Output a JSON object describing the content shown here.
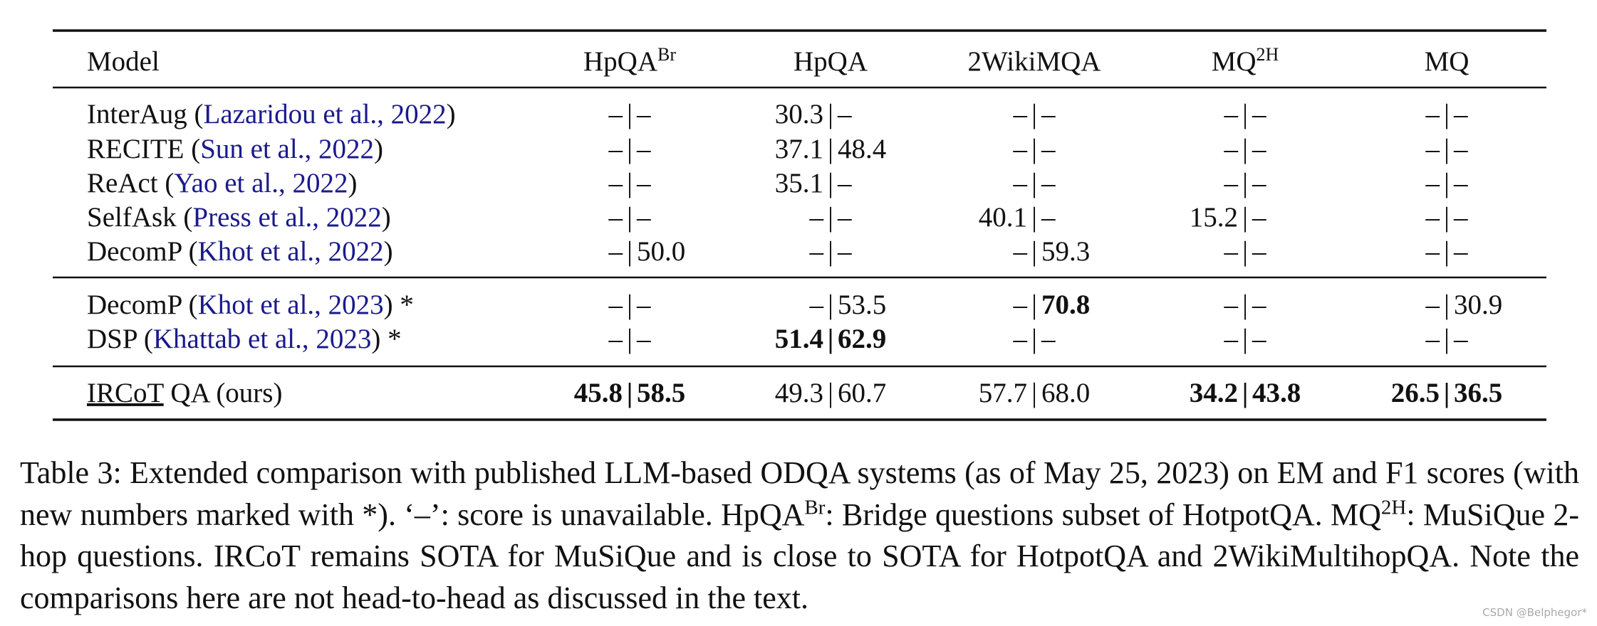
{
  "table": {
    "separator": "|",
    "header": [
      {
        "text": "Model"
      },
      {
        "text": "HpQA",
        "sup": "Br"
      },
      {
        "text": "HpQA"
      },
      {
        "text": "2WikiMQA"
      },
      {
        "text": "MQ",
        "sup": "2H"
      },
      {
        "text": "MQ"
      }
    ],
    "groups": [
      {
        "rows": [
          {
            "model_pre": "InterAug (",
            "model_cite": "Lazaridou et al., 2022",
            "model_post": ")",
            "cells": [
              {
                "em": "–",
                "f1": "–",
                "bold": [
                  false,
                  false
                ]
              },
              {
                "em": "30.3",
                "f1": "–",
                "bold": [
                  false,
                  false
                ]
              },
              {
                "em": "–",
                "f1": "–",
                "bold": [
                  false,
                  false
                ]
              },
              {
                "em": "–",
                "f1": "–",
                "bold": [
                  false,
                  false
                ]
              },
              {
                "em": "–",
                "f1": "–",
                "bold": [
                  false,
                  false
                ]
              }
            ]
          },
          {
            "model_pre": "RECITE (",
            "model_cite": "Sun et al., 2022",
            "model_post": ")",
            "cells": [
              {
                "em": "–",
                "f1": "–",
                "bold": [
                  false,
                  false
                ]
              },
              {
                "em": "37.1",
                "f1": "48.4",
                "bold": [
                  false,
                  false
                ]
              },
              {
                "em": "–",
                "f1": "–",
                "bold": [
                  false,
                  false
                ]
              },
              {
                "em": "–",
                "f1": "–",
                "bold": [
                  false,
                  false
                ]
              },
              {
                "em": "–",
                "f1": "–",
                "bold": [
                  false,
                  false
                ]
              }
            ]
          },
          {
            "model_pre": "ReAct (",
            "model_cite": "Yao et al., 2022",
            "model_post": ")",
            "cells": [
              {
                "em": "–",
                "f1": "–",
                "bold": [
                  false,
                  false
                ]
              },
              {
                "em": "35.1",
                "f1": "–",
                "bold": [
                  false,
                  false
                ]
              },
              {
                "em": "–",
                "f1": "–",
                "bold": [
                  false,
                  false
                ]
              },
              {
                "em": "–",
                "f1": "–",
                "bold": [
                  false,
                  false
                ]
              },
              {
                "em": "–",
                "f1": "–",
                "bold": [
                  false,
                  false
                ]
              }
            ]
          },
          {
            "model_pre": "SelfAsk (",
            "model_cite": "Press et al., 2022",
            "model_post": ")",
            "cells": [
              {
                "em": "–",
                "f1": "–",
                "bold": [
                  false,
                  false
                ]
              },
              {
                "em": "–",
                "f1": "–",
                "bold": [
                  false,
                  false
                ]
              },
              {
                "em": "40.1",
                "f1": "–",
                "bold": [
                  false,
                  false
                ]
              },
              {
                "em": "15.2",
                "f1": "–",
                "bold": [
                  false,
                  false
                ]
              },
              {
                "em": "–",
                "f1": "–",
                "bold": [
                  false,
                  false
                ]
              }
            ]
          },
          {
            "model_pre": "DecomP (",
            "model_cite": "Khot et al., 2022",
            "model_post": ")",
            "cells": [
              {
                "em": "–",
                "f1": "50.0",
                "bold": [
                  false,
                  false
                ]
              },
              {
                "em": "–",
                "f1": "–",
                "bold": [
                  false,
                  false
                ]
              },
              {
                "em": "–",
                "f1": "59.3",
                "bold": [
                  false,
                  false
                ]
              },
              {
                "em": "–",
                "f1": "–",
                "bold": [
                  false,
                  false
                ]
              },
              {
                "em": "–",
                "f1": "–",
                "bold": [
                  false,
                  false
                ]
              }
            ]
          }
        ]
      },
      {
        "rows": [
          {
            "model_pre": "DecomP (",
            "model_cite": "Khot et al., 2023",
            "model_post": ") *",
            "cells": [
              {
                "em": "–",
                "f1": "–",
                "bold": [
                  false,
                  false
                ]
              },
              {
                "em": "–",
                "f1": "53.5",
                "bold": [
                  false,
                  false
                ]
              },
              {
                "em": "–",
                "f1": "70.8",
                "bold": [
                  false,
                  true
                ]
              },
              {
                "em": "–",
                "f1": "–",
                "bold": [
                  false,
                  false
                ]
              },
              {
                "em": "–",
                "f1": "30.9",
                "bold": [
                  false,
                  false
                ]
              }
            ]
          },
          {
            "model_pre": "DSP (",
            "model_cite": "Khattab et al., 2023",
            "model_post": ") *",
            "cells": [
              {
                "em": "–",
                "f1": "–",
                "bold": [
                  false,
                  false
                ]
              },
              {
                "em": "51.4",
                "f1": "62.9",
                "bold": [
                  true,
                  true
                ]
              },
              {
                "em": "–",
                "f1": "–",
                "bold": [
                  false,
                  false
                ]
              },
              {
                "em": "–",
                "f1": "–",
                "bold": [
                  false,
                  false
                ]
              },
              {
                "em": "–",
                "f1": "–",
                "bold": [
                  false,
                  false
                ]
              }
            ]
          }
        ]
      },
      {
        "rows": [
          {
            "model_underlined": "IRCoT",
            "model_post": " QA (ours)",
            "cells": [
              {
                "em": "45.8",
                "f1": "58.5",
                "bold": [
                  true,
                  true
                ]
              },
              {
                "em": "49.3",
                "f1": "60.7",
                "bold": [
                  false,
                  false
                ]
              },
              {
                "em": "57.7",
                "f1": "68.0",
                "bold": [
                  false,
                  false
                ]
              },
              {
                "em": "34.2",
                "f1": "43.8",
                "bold": [
                  true,
                  true
                ]
              },
              {
                "em": "26.5",
                "f1": "36.5",
                "bold": [
                  true,
                  true
                ]
              }
            ]
          }
        ]
      }
    ]
  },
  "caption": [
    {
      "text": "Table 3: Extended comparison with published LLM-based ODQA systems (as of May 25, 2023) on EM and F1 scores (with new numbers marked with *). ‘–’: score is unavailable. HpQA"
    },
    {
      "sup": "Br"
    },
    {
      "text": ": Bridge questions subset of HotpotQA. MQ"
    },
    {
      "sup": "2H"
    },
    {
      "text": ": MuSiQue 2-hop questions.  IRCoT remains SOTA for MuSiQue and is close to SOTA for HotpotQA and 2WikiMultihopQA. Note the comparisons here are not head-to-head as discussed in the text."
    }
  ],
  "watermark": "CSDN @Belphegor*"
}
